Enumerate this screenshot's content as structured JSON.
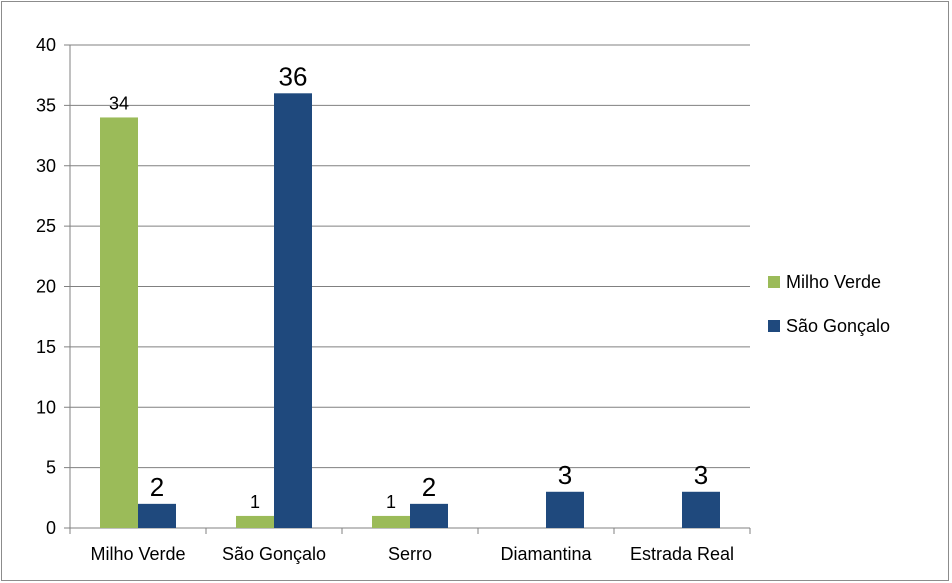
{
  "chart_data": {
    "type": "bar",
    "categories": [
      "Milho Verde",
      "São Gonçalo",
      "Serro",
      "Diamantina",
      "Estrada Real"
    ],
    "series": [
      {
        "name": "Milho Verde",
        "color": "#9bbb59",
        "values": [
          34,
          1,
          1,
          null,
          null
        ],
        "labels": [
          "34",
          "1",
          "1",
          "",
          ""
        ]
      },
      {
        "name": "São Gonçalo",
        "color": "#1f497d",
        "values": [
          2,
          36,
          2,
          3,
          3
        ],
        "labels": [
          "2",
          "36",
          "2",
          "3",
          "3"
        ]
      }
    ],
    "ylim": [
      0,
      40
    ],
    "yticks": [
      "0",
      "5",
      "10",
      "15",
      "20",
      "25",
      "30",
      "35",
      "40"
    ],
    "grid": true,
    "legend": "right",
    "gridline_color": "#808080"
  }
}
